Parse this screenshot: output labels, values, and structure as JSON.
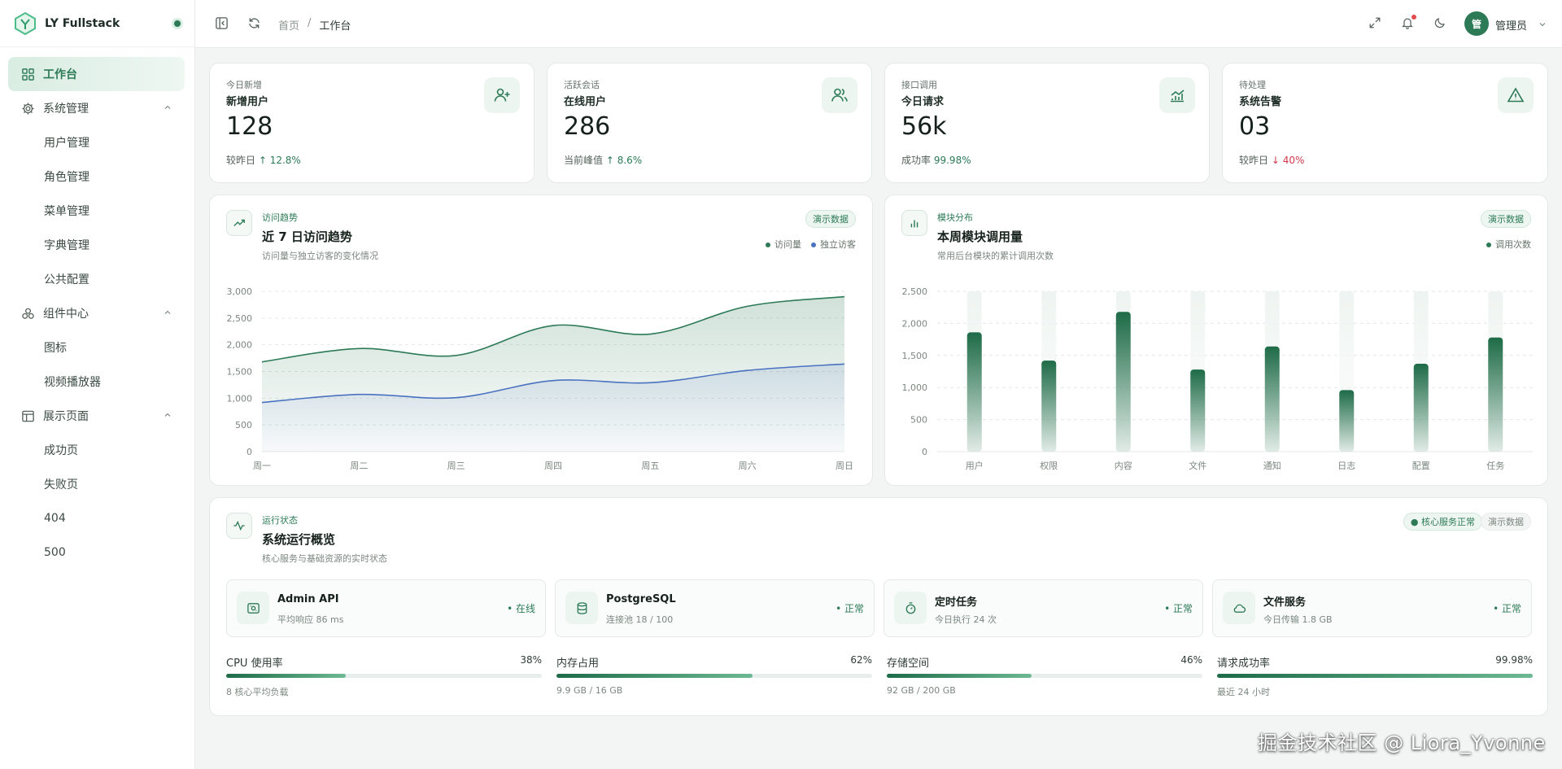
{
  "app": {
    "name": "LY Fullstack"
  },
  "sidebar": {
    "active": {
      "label": "工作台"
    },
    "groups": [
      {
        "label": "系统管理",
        "children": [
          "用户管理",
          "角色管理",
          "菜单管理",
          "字典管理",
          "公共配置"
        ]
      },
      {
        "label": "组件中心",
        "children": [
          "图标",
          "视频播放器"
        ]
      },
      {
        "label": "展示页面",
        "children": [
          "成功页",
          "失败页",
          "404",
          "500"
        ]
      }
    ]
  },
  "header": {
    "breadcrumb": [
      "首页",
      "/",
      "工作台"
    ],
    "avatar_text": "管",
    "user_name": "管理员"
  },
  "stats": [
    {
      "kicker": "今日新增",
      "title": "新增用户",
      "value": "128",
      "foot_label": "较昨日",
      "foot_value": "↑ 12.8%",
      "trend": "up",
      "icon": "user-plus-icon"
    },
    {
      "kicker": "活跃会话",
      "title": "在线用户",
      "value": "286",
      "foot_label": "当前峰值",
      "foot_value": "↑ 8.6%",
      "trend": "up",
      "icon": "users-icon"
    },
    {
      "kicker": "接口调用",
      "title": "今日请求",
      "value": "56k",
      "foot_label": "成功率",
      "foot_value": "99.98%",
      "trend": "up",
      "icon": "trend-chart-icon"
    },
    {
      "kicker": "待处理",
      "title": "系统告警",
      "value": "03",
      "foot_label": "较昨日",
      "foot_value": "↓ 40%",
      "trend": "down",
      "icon": "alert-triangle-icon"
    }
  ],
  "visit_chart": {
    "tag": "访问趋势",
    "title": "近 7 日访问趋势",
    "subtitle": "访问量与独立访客的变化情况",
    "pill": "演示数据"
  },
  "module_chart": {
    "tag": "模块分布",
    "title": "本周模块调用量",
    "subtitle": "常用后台模块的累计调用次数",
    "pill": "演示数据"
  },
  "chart_data": [
    {
      "type": "area",
      "categories": [
        "周一",
        "周二",
        "周三",
        "周四",
        "周五",
        "周六",
        "周日"
      ],
      "series": [
        {
          "name": "访问量",
          "values": [
            1680,
            1930,
            1800,
            2360,
            2200,
            2720,
            2900
          ],
          "color": "#2c7a56"
        },
        {
          "name": "独立访客",
          "values": [
            920,
            1070,
            1010,
            1330,
            1290,
            1520,
            1640
          ],
          "color": "#4a72c0"
        }
      ],
      "yticks": [
        0,
        500,
        1000,
        1500,
        2000,
        2500,
        3000
      ],
      "ytick_labels": [
        "0",
        "500",
        "1,000",
        "1,500",
        "2,000",
        "2,500",
        "3,000"
      ],
      "ylim": [
        0,
        3000
      ],
      "grid": true,
      "legend": "top-right"
    },
    {
      "type": "bar",
      "categories": [
        "用户",
        "权限",
        "内容",
        "文件",
        "通知",
        "日志",
        "配置",
        "任务"
      ],
      "series": [
        {
          "name": "调用次数",
          "values": [
            1860,
            1420,
            2180,
            1280,
            1640,
            960,
            1370,
            1780
          ],
          "color": "#2c7a56"
        }
      ],
      "yticks": [
        0,
        500,
        1000,
        1500,
        2000,
        2500
      ],
      "ytick_labels": [
        "0",
        "500",
        "1,000",
        "1,500",
        "2,000",
        "2,500"
      ],
      "ylim": [
        0,
        2500
      ],
      "grid": true,
      "legend": "top-right"
    }
  ],
  "runtime": {
    "tag": "运行状态",
    "title": "系统运行概览",
    "subtitle": "核心服务与基础资源的实时状态",
    "pill_status": "● 核心服务正常",
    "pill_demo": "演示数据",
    "services": [
      {
        "name": "Admin API",
        "desc": "平均响应 86 ms",
        "status": "• 在线",
        "icon": "api-icon"
      },
      {
        "name": "PostgreSQL",
        "desc": "连接池 18 / 100",
        "status": "• 正常",
        "icon": "database-icon"
      },
      {
        "name": "定时任务",
        "desc": "今日执行 24 次",
        "status": "• 正常",
        "icon": "timer-icon"
      },
      {
        "name": "文件服务",
        "desc": "今日传输 1.8 GB",
        "status": "• 正常",
        "icon": "cloud-icon"
      }
    ],
    "resources": [
      {
        "name": "CPU 使用率",
        "percent": "38%",
        "value": 0.38,
        "desc": "8 核心平均负载"
      },
      {
        "name": "内存占用",
        "percent": "62%",
        "value": 0.62,
        "desc": "9.9 GB / 16 GB"
      },
      {
        "name": "存储空间",
        "percent": "46%",
        "value": 0.46,
        "desc": "92 GB / 200 GB"
      },
      {
        "name": "请求成功率",
        "percent": "99.98%",
        "value": 0.9998,
        "desc": "最近 24 小时"
      }
    ]
  },
  "watermark": "掘金技术社区 @ Liora_Yvonne"
}
